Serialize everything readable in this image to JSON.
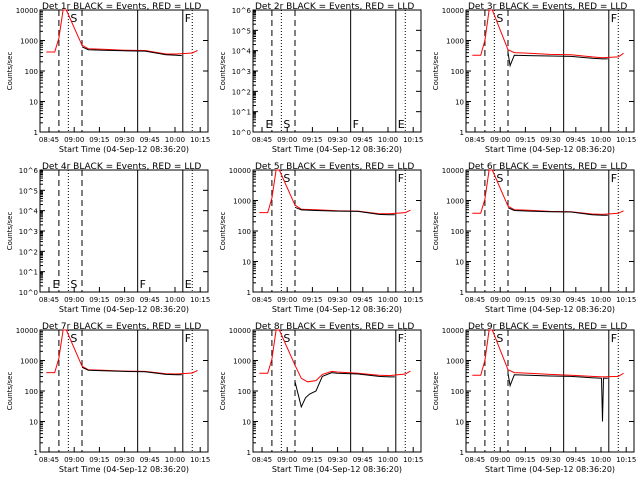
{
  "colors": {
    "events": "#000000",
    "lld": "#ff0000",
    "axis": "#000000",
    "background": "#ffffff"
  },
  "x_tick_labels": [
    "08:45",
    "09:00",
    "09:15",
    "09:30",
    "09:45",
    "10:00",
    "10:15"
  ],
  "xlabel": "Start Time (04-Sep-12 08:36:20)",
  "ylabel": "Counts/sec",
  "chart_data": [
    {
      "type": "line",
      "title": "Det 1r BLACK = Events, RED = LLD",
      "yscale": "log",
      "ylim": [
        1,
        10000
      ],
      "y_tick_labels": [
        "1",
        "10",
        "100",
        "1000",
        "10000"
      ],
      "markers": {
        "dashed": [
          48,
          70
        ],
        "solid": [
          123,
          166
        ],
        "dotted": [
          57,
          175
        ]
      },
      "letters": [
        {
          "text": "S",
          "x": 57
        },
        {
          "text": "F",
          "x": 166
        }
      ],
      "series": [
        {
          "color": "lld",
          "x": [
            36,
            44,
            48,
            52,
            55,
            70,
            76,
            90,
            110,
            130,
            150,
            160,
            175,
            180
          ],
          "y": [
            420,
            420,
            1200,
            10000,
            10000,
            700,
            540,
            520,
            480,
            470,
            360,
            360,
            390,
            470
          ]
        },
        {
          "color": "events",
          "x": [
            70,
            76,
            90,
            110,
            130,
            150,
            160,
            165
          ],
          "y": [
            620,
            500,
            480,
            460,
            450,
            340,
            330,
            320
          ]
        }
      ]
    },
    {
      "type": "line",
      "title": "Det 2r BLACK = Events, RED = LLD",
      "yscale": "log",
      "ylim": [
        1,
        1000000
      ],
      "y_tick_labels": [
        "10^0",
        "10^1",
        "10^2",
        "10^3",
        "10^4",
        "10^5",
        "10^6"
      ],
      "markers": {
        "dashed": [
          48,
          70
        ],
        "solid": [
          123,
          166
        ],
        "dotted": [
          57,
          175
        ]
      },
      "letters": [
        {
          "text": "E",
          "x": 40
        },
        {
          "text": "S",
          "x": 57
        },
        {
          "text": "F",
          "x": 123
        },
        {
          "text": "E",
          "x": 166
        }
      ],
      "series": []
    },
    {
      "type": "line",
      "title": "Det 3r BLACK = Events, RED = LLD",
      "yscale": "log",
      "ylim": [
        1,
        10000
      ],
      "y_tick_labels": [
        "1",
        "10",
        "100",
        "1000",
        "10000"
      ],
      "markers": {
        "dashed": [
          48,
          70
        ],
        "solid": [
          123,
          166
        ],
        "dotted": [
          57,
          175
        ]
      },
      "letters": [
        {
          "text": "S",
          "x": 57
        },
        {
          "text": "F",
          "x": 166
        }
      ],
      "series": [
        {
          "color": "lld",
          "x": [
            36,
            44,
            48,
            52,
            55,
            70,
            76,
            90,
            110,
            130,
            150,
            160,
            175,
            180
          ],
          "y": [
            330,
            330,
            1000,
            10000,
            10000,
            500,
            400,
            380,
            350,
            340,
            290,
            270,
            290,
            380
          ]
        },
        {
          "color": "events",
          "x": [
            70,
            72,
            76,
            90,
            110,
            130,
            150,
            160,
            165
          ],
          "y": [
            400,
            150,
            330,
            320,
            310,
            300,
            260,
            250,
            250
          ]
        }
      ]
    },
    {
      "type": "line",
      "title": "Det 4r BLACK = Events, RED = LLD",
      "yscale": "log",
      "ylim": [
        1,
        1000000
      ],
      "y_tick_labels": [
        "10^0",
        "10^1",
        "10^2",
        "10^3",
        "10^4",
        "10^5",
        "10^6"
      ],
      "markers": {
        "dashed": [
          48,
          70
        ],
        "solid": [
          123,
          166
        ],
        "dotted": [
          57,
          175
        ]
      },
      "letters": [
        {
          "text": "E",
          "x": 40
        },
        {
          "text": "S",
          "x": 57
        },
        {
          "text": "F",
          "x": 123
        },
        {
          "text": "E",
          "x": 166
        }
      ],
      "series": []
    },
    {
      "type": "line",
      "title": "Det 5r BLACK = Events, RED = LLD",
      "yscale": "log",
      "ylim": [
        1,
        10000
      ],
      "y_tick_labels": [
        "1",
        "10",
        "100",
        "1000",
        "10000"
      ],
      "markers": {
        "dashed": [
          48,
          70
        ],
        "solid": [
          123,
          166
        ],
        "dotted": [
          57,
          175
        ]
      },
      "letters": [
        {
          "text": "S",
          "x": 57
        },
        {
          "text": "F",
          "x": 166
        }
      ],
      "series": [
        {
          "color": "lld",
          "x": [
            36,
            44,
            48,
            52,
            55,
            70,
            76,
            90,
            110,
            130,
            150,
            160,
            175,
            180
          ],
          "y": [
            400,
            400,
            1200,
            10000,
            10000,
            700,
            520,
            500,
            460,
            450,
            370,
            370,
            400,
            480
          ]
        },
        {
          "color": "events",
          "x": [
            70,
            76,
            90,
            110,
            130,
            150,
            160,
            165
          ],
          "y": [
            600,
            490,
            470,
            450,
            440,
            350,
            340,
            340
          ]
        }
      ]
    },
    {
      "type": "line",
      "title": "Det 6r BLACK = Events, RED = LLD",
      "yscale": "log",
      "ylim": [
        1,
        10000
      ],
      "y_tick_labels": [
        "1",
        "10",
        "100",
        "1000",
        "10000"
      ],
      "markers": {
        "dashed": [
          48,
          70
        ],
        "solid": [
          123,
          166
        ],
        "dotted": [
          57,
          175
        ]
      },
      "letters": [
        {
          "text": "S",
          "x": 57
        },
        {
          "text": "F",
          "x": 166
        }
      ],
      "series": [
        {
          "color": "lld",
          "x": [
            36,
            44,
            48,
            52,
            55,
            70,
            76,
            90,
            110,
            130,
            150,
            160,
            175,
            180
          ],
          "y": [
            380,
            380,
            1100,
            10000,
            10000,
            650,
            500,
            480,
            440,
            430,
            360,
            350,
            380,
            460
          ]
        },
        {
          "color": "events",
          "x": [
            70,
            76,
            90,
            110,
            130,
            150,
            160,
            165
          ],
          "y": [
            580,
            470,
            450,
            430,
            420,
            340,
            330,
            330
          ]
        }
      ]
    },
    {
      "type": "line",
      "title": "Det 7r BLACK = Events, RED = LLD",
      "yscale": "log",
      "ylim": [
        1,
        10000
      ],
      "y_tick_labels": [
        "1",
        "10",
        "100",
        "1000",
        "10000"
      ],
      "markers": {
        "dashed": [
          48,
          70
        ],
        "solid": [
          123,
          166
        ],
        "dotted": [
          57,
          175
        ]
      },
      "letters": [
        {
          "text": "S",
          "x": 57
        },
        {
          "text": "F",
          "x": 166
        }
      ],
      "series": [
        {
          "color": "lld",
          "x": [
            36,
            44,
            48,
            52,
            55,
            70,
            76,
            90,
            110,
            130,
            150,
            160,
            175,
            180
          ],
          "y": [
            400,
            400,
            1200,
            10000,
            10000,
            650,
            500,
            480,
            450,
            440,
            370,
            360,
            390,
            470
          ]
        },
        {
          "color": "events",
          "x": [
            70,
            76,
            90,
            110,
            130,
            150,
            160,
            165
          ],
          "y": [
            600,
            480,
            460,
            440,
            430,
            350,
            340,
            340
          ]
        }
      ]
    },
    {
      "type": "line",
      "title": "Det 8r BLACK = Events, RED = LLD",
      "yscale": "log",
      "ylim": [
        1,
        10000
      ],
      "y_tick_labels": [
        "1",
        "10",
        "100",
        "1000",
        "10000"
      ],
      "markers": {
        "dashed": [
          48,
          70
        ],
        "solid": [
          123,
          166
        ],
        "dotted": [
          57,
          175
        ]
      },
      "letters": [
        {
          "text": "S",
          "x": 57
        },
        {
          "text": "F",
          "x": 166
        }
      ],
      "series": [
        {
          "color": "lld",
          "x": [
            36,
            44,
            48,
            52,
            55,
            70,
            76,
            82,
            90,
            96,
            105,
            110,
            120,
            130,
            150,
            160,
            175,
            180
          ],
          "y": [
            380,
            380,
            1100,
            10000,
            10000,
            700,
            260,
            200,
            220,
            350,
            440,
            420,
            400,
            380,
            330,
            320,
            360,
            450
          ]
        },
        {
          "color": "events",
          "x": [
            70,
            76,
            80,
            84,
            90,
            96,
            105,
            110,
            130,
            150,
            160,
            165
          ],
          "y": [
            200,
            30,
            60,
            80,
            100,
            300,
            400,
            380,
            360,
            300,
            290,
            290
          ]
        }
      ]
    },
    {
      "type": "line",
      "title": "Det 9r BLACK = Events, RED = LLD",
      "yscale": "log",
      "ylim": [
        1,
        10000
      ],
      "y_tick_labels": [
        "1",
        "10",
        "100",
        "1000",
        "10000"
      ],
      "markers": {
        "dashed": [
          48,
          70
        ],
        "solid": [
          123,
          166
        ],
        "dotted": [
          57,
          175
        ]
      },
      "letters": [
        {
          "text": "S",
          "x": 57
        },
        {
          "text": "F",
          "x": 166
        }
      ],
      "series": [
        {
          "color": "lld",
          "x": [
            36,
            44,
            48,
            52,
            55,
            70,
            76,
            90,
            110,
            130,
            150,
            160,
            175,
            180
          ],
          "y": [
            330,
            330,
            1000,
            10000,
            10000,
            500,
            400,
            380,
            350,
            330,
            300,
            290,
            300,
            380
          ]
        },
        {
          "color": "events",
          "x": [
            70,
            72,
            76,
            90,
            110,
            130,
            150,
            159,
            160,
            161,
            165
          ],
          "y": [
            380,
            150,
            340,
            330,
            310,
            300,
            270,
            260,
            10,
            260,
            260
          ]
        }
      ]
    }
  ]
}
